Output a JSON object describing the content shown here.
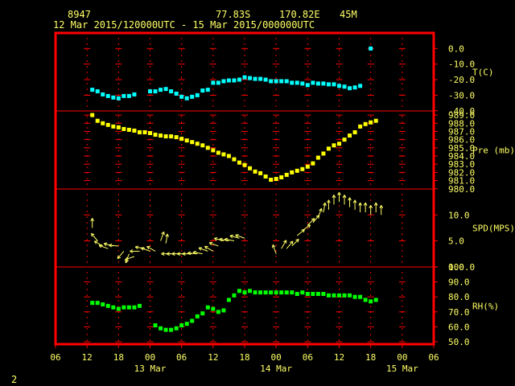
{
  "header": {
    "station": "8947",
    "lat": "77.83S",
    "lon": "170.82E",
    "elevation": "45M",
    "period": "12 Mar 2015/120000UTC - 15 Mar 2015/000000UTC"
  },
  "page_number": "2",
  "colors": {
    "background": "#000000",
    "frame": "#ff0000",
    "text": "#ffff66",
    "temperature": "#00ffff",
    "pressure": "#ffff00",
    "wind": "#ffff66",
    "humidity": "#00ff00"
  },
  "chart_data": {
    "type": "scatter",
    "x_unit": "hours since 12 Mar 2015 06 UTC",
    "x_range": [
      0,
      72
    ],
    "x_tick_labels": [
      "06",
      "12",
      "18",
      "00",
      "06",
      "12",
      "18",
      "00",
      "06",
      "12",
      "18",
      "00",
      "06"
    ],
    "date_labels": [
      {
        "label": "13 Mar",
        "at": 18
      },
      {
        "label": "14 Mar",
        "at": 42
      },
      {
        "label": "15 Mar",
        "at": 66
      }
    ],
    "panels": [
      {
        "name": "temperature",
        "label": "T(C)",
        "type": "scatter",
        "range": [
          -40,
          10
        ],
        "ticks": [
          0,
          -10,
          -20,
          -30,
          -40
        ],
        "tick_labels": [
          "0.0",
          "-10.0",
          "-20.0",
          "-30.0",
          "-40.0"
        ],
        "points": [
          [
            7,
            -26.5
          ],
          [
            8,
            -27.5
          ],
          [
            9,
            -29.5
          ],
          [
            10,
            -30.5
          ],
          [
            11,
            -31.5
          ],
          [
            12,
            -32
          ],
          [
            13,
            -30.5
          ],
          [
            14,
            -30.5
          ],
          [
            15,
            -29.5
          ],
          [
            18,
            -27.5
          ],
          [
            19,
            -27.5
          ],
          [
            20,
            -26.5
          ],
          [
            21,
            -26
          ],
          [
            22,
            -27.5
          ],
          [
            23,
            -29
          ],
          [
            24,
            -31
          ],
          [
            25,
            -32
          ],
          [
            26,
            -31
          ],
          [
            27,
            -30
          ],
          [
            28,
            -27
          ],
          [
            29,
            -26.5
          ],
          [
            30,
            -22
          ],
          [
            31,
            -22
          ],
          [
            32,
            -21
          ],
          [
            33,
            -20.5
          ],
          [
            34,
            -20.5
          ],
          [
            35,
            -20
          ],
          [
            36,
            -18.5
          ],
          [
            37,
            -19
          ],
          [
            38,
            -19.5
          ],
          [
            39,
            -19.5
          ],
          [
            40,
            -20
          ],
          [
            41,
            -21
          ],
          [
            42,
            -21
          ],
          [
            43,
            -21
          ],
          [
            44,
            -21
          ],
          [
            45,
            -22
          ],
          [
            46,
            -22
          ],
          [
            47,
            -22.5
          ],
          [
            48,
            -23.5
          ],
          [
            49,
            -22
          ],
          [
            50,
            -22.5
          ],
          [
            51,
            -22.5
          ],
          [
            52,
            -23
          ],
          [
            53,
            -23
          ],
          [
            54,
            -24
          ],
          [
            55,
            -24.5
          ],
          [
            56,
            -25.5
          ],
          [
            57,
            -25
          ],
          [
            58,
            -24
          ],
          [
            60,
            0
          ]
        ]
      },
      {
        "name": "pressure",
        "label": "Pre (mb)",
        "type": "scatter",
        "range": [
          980,
          989.5
        ],
        "ticks": [
          989,
          988,
          987,
          986,
          985,
          984,
          983,
          982,
          981,
          980
        ],
        "tick_labels": [
          "989.0",
          "988.0",
          "987.0",
          "986.0",
          "985.0",
          "984.0",
          "983.0",
          "982.0",
          "981.0",
          "980.0"
        ],
        "points": [
          [
            7,
            989
          ],
          [
            8,
            988.3
          ],
          [
            9,
            988
          ],
          [
            10,
            987.8
          ],
          [
            11,
            987.6
          ],
          [
            12,
            987.5
          ],
          [
            13,
            987.3
          ],
          [
            14,
            987.2
          ],
          [
            15,
            987.1
          ],
          [
            16,
            986.9
          ],
          [
            17,
            986.9
          ],
          [
            18,
            986.8
          ],
          [
            19,
            986.6
          ],
          [
            20,
            986.5
          ],
          [
            21,
            986.4
          ],
          [
            22,
            986.4
          ],
          [
            23,
            986.3
          ],
          [
            24,
            986.1
          ],
          [
            25,
            985.9
          ],
          [
            26,
            985.7
          ],
          [
            27,
            985.5
          ],
          [
            28,
            985.3
          ],
          [
            29,
            985
          ],
          [
            30,
            984.7
          ],
          [
            31,
            984.4
          ],
          [
            32,
            984.2
          ],
          [
            33,
            984
          ],
          [
            34,
            983.6
          ],
          [
            35,
            983.2
          ],
          [
            36,
            982.9
          ],
          [
            37,
            982.5
          ],
          [
            38,
            982.1
          ],
          [
            39,
            981.9
          ],
          [
            40,
            981.5
          ],
          [
            41,
            981.1
          ],
          [
            42,
            981.2
          ],
          [
            43,
            981.4
          ],
          [
            44,
            981.7
          ],
          [
            45,
            982
          ],
          [
            46,
            982.2
          ],
          [
            47,
            982.4
          ],
          [
            48,
            982.7
          ],
          [
            49,
            983.1
          ],
          [
            50,
            983.8
          ],
          [
            51,
            984.3
          ],
          [
            52,
            984.9
          ],
          [
            53,
            985.3
          ],
          [
            54,
            985.5
          ],
          [
            55,
            986
          ],
          [
            56,
            986.5
          ],
          [
            57,
            986.9
          ],
          [
            58,
            987.6
          ],
          [
            59,
            987.9
          ],
          [
            60,
            988.1
          ],
          [
            61,
            988.3
          ]
        ]
      },
      {
        "name": "wind",
        "label": "SPD(MPS)",
        "type": "vector",
        "range": [
          0,
          15
        ],
        "ticks": [
          10,
          5,
          0
        ],
        "tick_labels": [
          "10.0",
          "5.0",
          "0.0"
        ],
        "arrows": [
          [
            7,
            7.5,
            0
          ],
          [
            8,
            5,
            320
          ],
          [
            9,
            4,
            300
          ],
          [
            10,
            3.5,
            290
          ],
          [
            11,
            4,
            285
          ],
          [
            12,
            4,
            275
          ],
          [
            13,
            3,
            220
          ],
          [
            14,
            2.5,
            200
          ],
          [
            15,
            2,
            250
          ],
          [
            16,
            3,
            270
          ],
          [
            17,
            3.5,
            280
          ],
          [
            18,
            3,
            290
          ],
          [
            19,
            3,
            300
          ],
          [
            20,
            5,
            20
          ],
          [
            21,
            4.5,
            10
          ],
          [
            22,
            2.5,
            270
          ],
          [
            23,
            2.5,
            270
          ],
          [
            24,
            2.5,
            270
          ],
          [
            25,
            2.5,
            270
          ],
          [
            26,
            2.5,
            270
          ],
          [
            27,
            2.5,
            275
          ],
          [
            28,
            2.5,
            280
          ],
          [
            29,
            3,
            290
          ],
          [
            30,
            3,
            300
          ],
          [
            31,
            4,
            290
          ],
          [
            32,
            5,
            285
          ],
          [
            33,
            5,
            280
          ],
          [
            34,
            5,
            280
          ],
          [
            35,
            5.5,
            285
          ],
          [
            36,
            5.5,
            290
          ],
          [
            42,
            2.5,
            340
          ],
          [
            43,
            3.5,
            30
          ],
          [
            44,
            3.5,
            40
          ],
          [
            45,
            4,
            45
          ],
          [
            46,
            6,
            50
          ],
          [
            47,
            7,
            55
          ],
          [
            48,
            8,
            45
          ],
          [
            49,
            8.5,
            40
          ],
          [
            50,
            9.5,
            20
          ],
          [
            51,
            10.5,
            10
          ],
          [
            52,
            11,
            0
          ],
          [
            53,
            12,
            0
          ],
          [
            54,
            12.5,
            0
          ],
          [
            55,
            12,
            0
          ],
          [
            56,
            11.5,
            0
          ],
          [
            57,
            11,
            0
          ],
          [
            58,
            10.5,
            0
          ],
          [
            59,
            10.5,
            0
          ],
          [
            60,
            10,
            0
          ],
          [
            61,
            10.5,
            0
          ],
          [
            62,
            10,
            0
          ]
        ]
      },
      {
        "name": "humidity",
        "label": "RH(%)",
        "type": "scatter",
        "range": [
          48,
          100
        ],
        "ticks": [
          100,
          90,
          80,
          70,
          60,
          50
        ],
        "tick_labels": [
          "100.0",
          "90.0",
          "80.0",
          "70.0",
          "60.0",
          "50.0"
        ],
        "points": [
          [
            7,
            76
          ],
          [
            8,
            76
          ],
          [
            9,
            75
          ],
          [
            10,
            74
          ],
          [
            11,
            73
          ],
          [
            12,
            72
          ],
          [
            13,
            73
          ],
          [
            14,
            73
          ],
          [
            15,
            73
          ],
          [
            16,
            74
          ],
          [
            19,
            61
          ],
          [
            20,
            59
          ],
          [
            21,
            58
          ],
          [
            22,
            58
          ],
          [
            23,
            59
          ],
          [
            24,
            61
          ],
          [
            25,
            62
          ],
          [
            26,
            64
          ],
          [
            27,
            67
          ],
          [
            28,
            69
          ],
          [
            29,
            73
          ],
          [
            30,
            72
          ],
          [
            31,
            70
          ],
          [
            32,
            71
          ],
          [
            33,
            78
          ],
          [
            34,
            81
          ],
          [
            35,
            84
          ],
          [
            36,
            83
          ],
          [
            37,
            84
          ],
          [
            38,
            83
          ],
          [
            39,
            83
          ],
          [
            40,
            83
          ],
          [
            41,
            83
          ],
          [
            42,
            83
          ],
          [
            43,
            83
          ],
          [
            44,
            83
          ],
          [
            45,
            83
          ],
          [
            46,
            82
          ],
          [
            47,
            83
          ],
          [
            48,
            82
          ],
          [
            49,
            82
          ],
          [
            50,
            82
          ],
          [
            51,
            82
          ],
          [
            52,
            81
          ],
          [
            53,
            81
          ],
          [
            54,
            81
          ],
          [
            55,
            81
          ],
          [
            56,
            81
          ],
          [
            57,
            80
          ],
          [
            58,
            80
          ],
          [
            59,
            78
          ],
          [
            60,
            77
          ],
          [
            61,
            78
          ]
        ]
      }
    ]
  }
}
